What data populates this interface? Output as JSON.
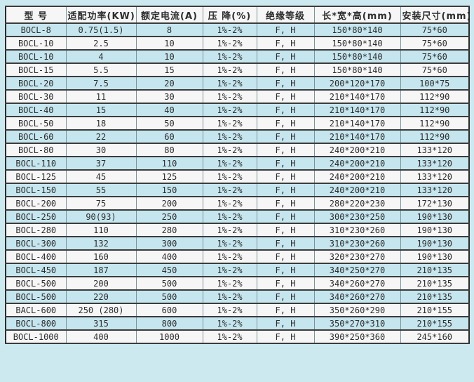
{
  "colors": {
    "page_bg": "#cde9f0",
    "row_blue": "#c6e6ef",
    "row_white": "#f6f6f6",
    "header_bg": "#f6f6f6",
    "vline": "#7a939c",
    "hline": "#3c3c3c",
    "outer_border": "#2b2b2b",
    "text": "#2d2d2d"
  },
  "table": {
    "headers": [
      "型 号",
      "适配功率(KW)",
      "额定电流(A)",
      "压 降(%)",
      "绝缘等级",
      "长*宽*高(mm)",
      "安装尺寸(mm)"
    ],
    "column_keys": [
      "model",
      "power",
      "current",
      "voltage-drop",
      "insulation",
      "dimensions",
      "mounting"
    ],
    "rows": [
      [
        "BOCL-8",
        "0.75(1.5)",
        "8",
        "1%-2%",
        "F, H",
        "150*80*140",
        "75*60"
      ],
      [
        "BOCL-10",
        "2.5",
        "10",
        "1%-2%",
        "F, H",
        "150*80*140",
        "75*60"
      ],
      [
        "BOCL-10",
        "4",
        "10",
        "1%-2%",
        "F, H",
        "150*80*140",
        "75*60"
      ],
      [
        "BOCL-15",
        "5.5",
        "15",
        "1%-2%",
        "F, H",
        "150*80*140",
        "75*60"
      ],
      [
        "BOCL-20",
        "7.5",
        "20",
        "1%-2%",
        "F, H",
        "200*120*170",
        "100*75"
      ],
      [
        "BOCL-30",
        "11",
        "30",
        "1%-2%",
        "F, H",
        "210*140*170",
        "112*90"
      ],
      [
        "BOCL-40",
        "15",
        "40",
        "1%-2%",
        "F, H",
        "210*140*170",
        "112*90"
      ],
      [
        "BOCL-50",
        "18",
        "50",
        "1%-2%",
        "F, H",
        "210*140*170",
        "112*90"
      ],
      [
        "BOCL-60",
        "22",
        "60",
        "1%-2%",
        "F, H",
        "210*140*170",
        "112*90"
      ],
      [
        "BOCL-80",
        "30",
        "80",
        "1%-2%",
        "F, H",
        "240*200*210",
        "133*120"
      ],
      [
        "BOCL-110",
        "37",
        "110",
        "1%-2%",
        "F, H",
        "240*200*210",
        "133*120"
      ],
      [
        "BOCL-125",
        "45",
        "125",
        "1%-2%",
        "F, H",
        "240*200*210",
        "133*120"
      ],
      [
        "BOCL-150",
        "55",
        "150",
        "1%-2%",
        "F, H",
        "240*200*210",
        "133*120"
      ],
      [
        "BOCL-200",
        "75",
        "200",
        "1%-2%",
        "F, H",
        "280*220*230",
        "172*130"
      ],
      [
        "BOCL-250",
        "90(93)",
        "250",
        "1%-2%",
        "F, H",
        "300*230*250",
        "190*130"
      ],
      [
        "BOCL-280",
        "110",
        "280",
        "1%-2%",
        "F, H",
        "310*230*260",
        "190*130"
      ],
      [
        "BOCL-300",
        "132",
        "300",
        "1%-2%",
        "F, H",
        "310*230*260",
        "190*130"
      ],
      [
        "BOCL-400",
        "160",
        "400",
        "1%-2%",
        "F, H",
        "320*230*270",
        "190*130"
      ],
      [
        "BOCL-450",
        "187",
        "450",
        "1%-2%",
        "F, H",
        "340*250*270",
        "210*135"
      ],
      [
        "BOCL-500",
        "200",
        "500",
        "1%-2%",
        "F, H",
        "340*260*270",
        "210*135"
      ],
      [
        "BOCL-500",
        "220",
        "500",
        "1%-2%",
        "F, H",
        "340*260*270",
        "210*135"
      ],
      [
        "BACL-600",
        "250 (280)",
        "600",
        "1%-2%",
        "F, H",
        "350*260*290",
        "210*155"
      ],
      [
        "BOCL-800",
        "315",
        "800",
        "1%-2%",
        "F, H",
        "350*270*310",
        "210*155"
      ],
      [
        "BOCL-1000",
        "400",
        "1000",
        "1%-2%",
        "F, H",
        "390*250*360",
        "245*160"
      ]
    ]
  }
}
